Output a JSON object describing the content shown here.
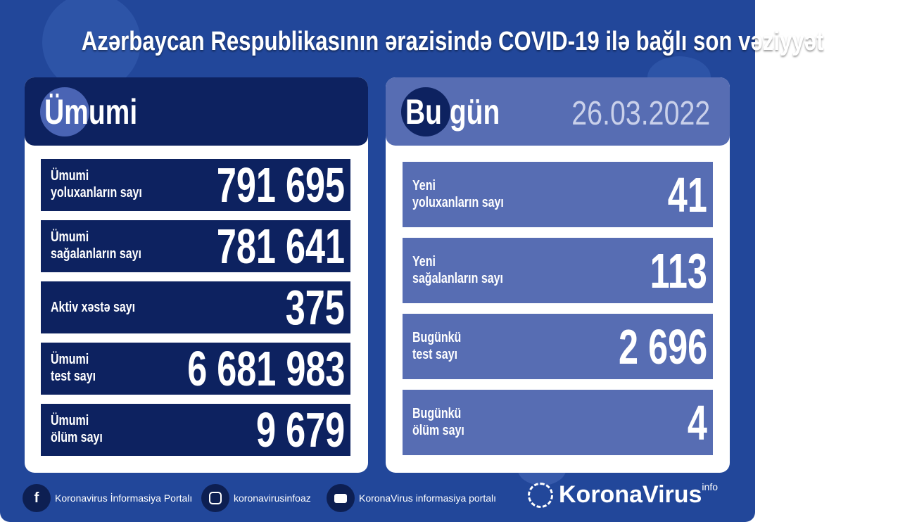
{
  "title": "Azərbaycan Respublikasının ərazisində COVID-19 ilə bağlı son vəziyyət",
  "colors": {
    "background": "#22479a",
    "total_panel": "#0d2260",
    "today_panel": "#576db3",
    "date_text": "#c9d0ea"
  },
  "total": {
    "header": "Ümumi",
    "rows": [
      {
        "label1": "Ümumi",
        "label2": "yoluxanların sayı",
        "value": "791 695"
      },
      {
        "label1": "Ümumi",
        "label2": "sağalanların sayı",
        "value": "781 641"
      },
      {
        "label1": "Aktiv xəstə sayı",
        "label2": "",
        "value": "375"
      },
      {
        "label1": "Ümumi",
        "label2": "test sayı",
        "value": "6 681 983"
      },
      {
        "label1": "Ümumi",
        "label2": "ölüm sayı",
        "value": "9 679"
      }
    ]
  },
  "today": {
    "header": "Bu gün",
    "date": "26.03.2022",
    "rows": [
      {
        "label1": "Yeni",
        "label2": "yoluxanların sayı",
        "value": "41"
      },
      {
        "label1": "Yeni",
        "label2": "sağalanların sayı",
        "value": "113"
      },
      {
        "label1": "Bugünkü",
        "label2": "test sayı",
        "value": "2 696"
      },
      {
        "label1": "Bugünkü",
        "label2": "ölüm sayı",
        "value": "4"
      }
    ]
  },
  "footer": {
    "facebook": "Koronavirus İnformasiya Portalı",
    "instagram": "koronavirusinfoaz",
    "youtube": "KoronaVirus informasiya portalı",
    "brand": "KoronaVirus",
    "brand_sup": "info",
    "icons": [
      "facebook-icon",
      "instagram-icon",
      "youtube-icon",
      "sun-virus-logo-icon"
    ]
  }
}
